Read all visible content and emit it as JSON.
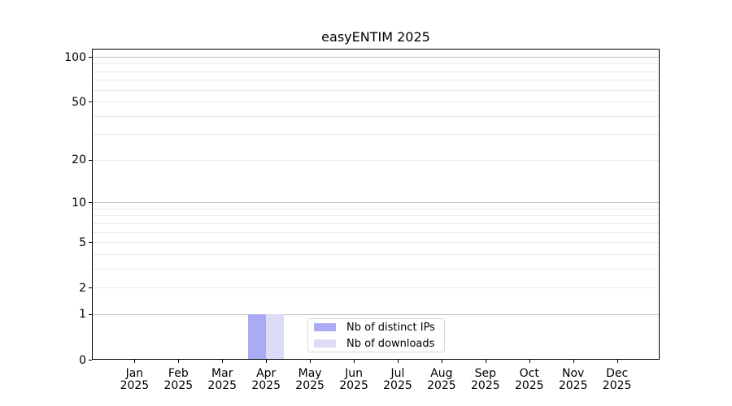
{
  "chart_data": {
    "type": "bar",
    "title": "easyENTIM 2025",
    "x_categories": {
      "months": [
        "Jan",
        "Feb",
        "Mar",
        "Apr",
        "May",
        "Jun",
        "Jul",
        "Aug",
        "Sep",
        "Oct",
        "Nov",
        "Dec"
      ],
      "year": "2025"
    },
    "series": [
      {
        "name": "Nb of distinct IPs",
        "color": "#aaaaf5",
        "values": [
          0,
          0,
          0,
          1,
          0,
          0,
          0,
          0,
          0,
          0,
          0,
          0
        ]
      },
      {
        "name": "Nb of downloads",
        "color": "#dcdcf8",
        "values": [
          0,
          0,
          0,
          1,
          0,
          0,
          0,
          0,
          0,
          0,
          0,
          0
        ]
      }
    ],
    "y_axis": {
      "scale": "log1p",
      "range": [
        0,
        100
      ],
      "tick_values": [
        0,
        1,
        2,
        5,
        10,
        20,
        50,
        100
      ],
      "tick_labels": [
        "0",
        "1",
        "2",
        "5",
        "10",
        "20",
        "50",
        "100"
      ],
      "major_gridlines": [
        1,
        10,
        100
      ],
      "minor_gridlines": [
        2,
        3,
        4,
        5,
        6,
        7,
        8,
        9,
        20,
        30,
        40,
        50,
        60,
        70,
        80,
        90
      ]
    },
    "legend": {
      "entries": [
        "Nb of distinct IPs",
        "Nb of downloads"
      ],
      "position": "inside-bottom-center"
    },
    "colors": {
      "bar_distinct_ips": "#aaaaf5",
      "bar_downloads": "#dcdcf8",
      "major_grid": "#c2c2c2",
      "minor_grid": "#e9e9e9",
      "axis": "#000000",
      "background": "#ffffff"
    },
    "layout_hints": {
      "grid": "horizontal only",
      "legend_border": true
    }
  }
}
